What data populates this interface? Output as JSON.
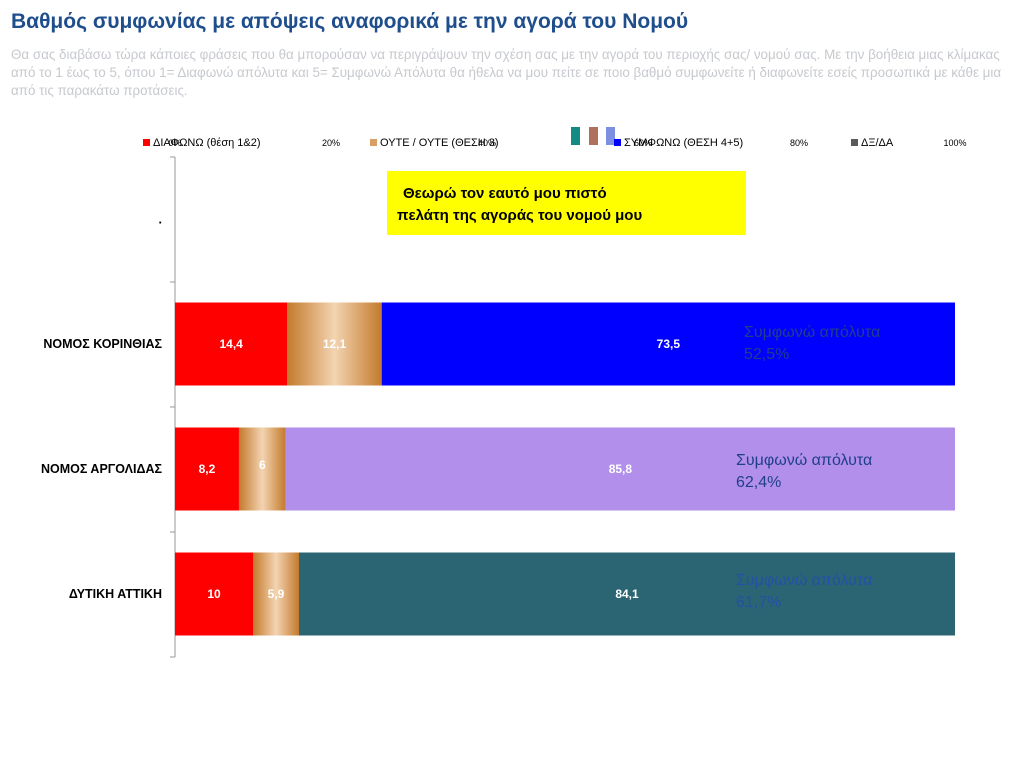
{
  "header": {
    "title": "Βαθμός συμφωνίας με απόψεις αναφορικά με την αγορά του Νομού",
    "subtitle": "Θα σας διαβάσω τώρα κάποιες φράσεις που θα μπορούσαν να περιγράψουν την σχέση σας με την αγορά του περιοχής σας/ νομού σας. Με την βοήθεια μιας κλίμακας από το 1 έως το 5, όπου 1= Διαφωνώ απόλυτα και 5= Συμφωνώ Απόλυτα θα ήθελα να μου πείτε σε ποιο βαθμό συμφωνείτε ή διαφωνείτε εσείς προσωπικά με κάθε μια από τις παρακάτω προτάσεις."
  },
  "callout": {
    "line1": "Θεωρώ τον εαυτό μου πιστό",
    "line2": "πελάτη της αγοράς του νομού μου"
  },
  "notes": [
    {
      "label": "Συμφωνώ απόλυτα",
      "value": "52,5%"
    },
    {
      "label": "Συμφωνώ απόλυτα",
      "value": "62,4%"
    },
    {
      "label": "Συμφωνώ απόλυτα",
      "value": "61,7%"
    }
  ],
  "colors": {
    "disagree": "#ff0000",
    "neutral": "#d9a066",
    "dk": "#5a5a5a",
    "agree_korinthias": "#0000ff",
    "agree_argolidas": "#b18fea",
    "agree_attiki": "#2b6573",
    "swatch_teal": "#138a82",
    "swatch_gray": "#b07060",
    "swatch_lilac": "#7c8fe0"
  },
  "chart_data": {
    "type": "bar",
    "orientation": "horizontal",
    "stacked": true,
    "xlim": [
      0,
      100
    ],
    "x_tick_labels": [
      "0%",
      "20%",
      "40%",
      "60%",
      "80%",
      "100%"
    ],
    "legend_placement": "top",
    "categories": [
      ".",
      "ΝΟΜΟΣ ΚΟΡΙΝΘΙΑΣ",
      "ΝΟΜΟΣ ΑΡΓΟΛΙΔΑΣ",
      "ΔΥΤΙΚΗ ΑΤΤΙΚΗ"
    ],
    "series": [
      {
        "name": "ΔΙΑΦΩΝΩ (θέση 1&2)",
        "values": [
          null,
          14.4,
          8.2,
          10
        ],
        "labels": [
          "",
          "14,4",
          "8,2",
          "10"
        ]
      },
      {
        "name": "ΟΥΤΕ / ΟΥΤΕ (ΘΕΣΗ 3)",
        "values": [
          null,
          12.1,
          6,
          5.9
        ],
        "labels": [
          "",
          "12,1",
          "6",
          "5,9"
        ]
      },
      {
        "name": "ΣΥΜΦΩΝΩ (ΘΕΣΗ 4+5)",
        "values": [
          null,
          73.5,
          85.8,
          84.1
        ],
        "labels": [
          "",
          "73,5",
          "85,8",
          "84,1"
        ]
      },
      {
        "name": "ΔΞ/ΔΑ",
        "values": [
          null,
          0,
          0,
          0
        ],
        "labels": [
          "",
          "0",
          "0",
          "0"
        ]
      }
    ]
  }
}
